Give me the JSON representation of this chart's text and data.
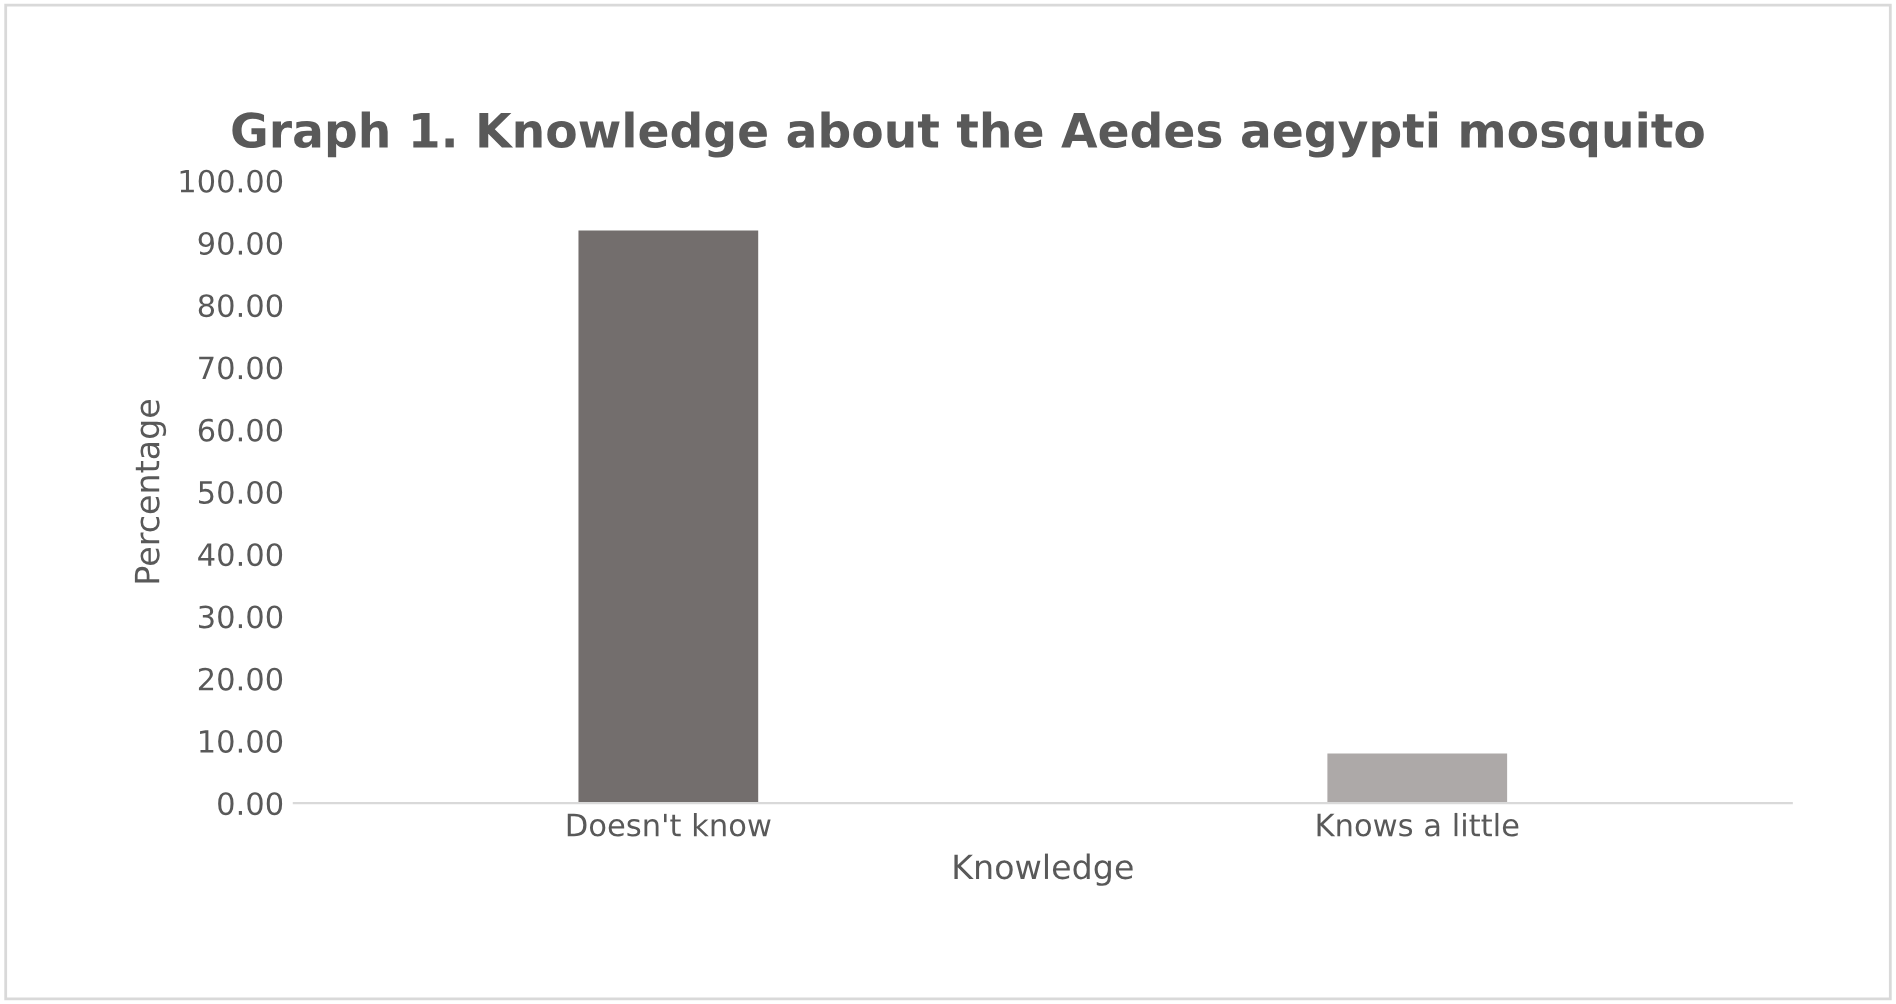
{
  "chart_data": {
    "type": "bar",
    "title": "Graph 1. Knowledge about the Aedes aegypti mosquito",
    "xlabel": "Knowledge",
    "ylabel": "Percentage",
    "categories": [
      "Doesn't know",
      "Knows a little"
    ],
    "values": [
      92,
      8
    ],
    "colors": [
      "#736e6d",
      "#ada9a8"
    ],
    "ylim": [
      0,
      100
    ],
    "yticks": [
      {
        "value": 0,
        "label": "0.00"
      },
      {
        "value": 10,
        "label": "10.00"
      },
      {
        "value": 20,
        "label": "20.00"
      },
      {
        "value": 30,
        "label": "30.00"
      },
      {
        "value": 40,
        "label": "40.00"
      },
      {
        "value": 50,
        "label": "50.00"
      },
      {
        "value": 60,
        "label": "60.00"
      },
      {
        "value": 70,
        "label": "70.00"
      },
      {
        "value": 80,
        "label": "80.00"
      },
      {
        "value": 90,
        "label": "90.00"
      },
      {
        "value": 100,
        "label": "100.00"
      }
    ],
    "grid": false,
    "legend": false
  }
}
